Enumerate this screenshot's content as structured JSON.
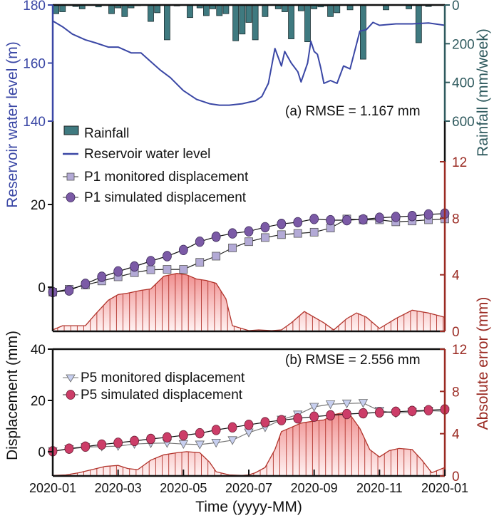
{
  "chart_data": [
    {
      "panel": "a",
      "type": "line",
      "annotation": "(a) RMSE = 1.167 mm",
      "colors": {
        "water": "#3a47a5",
        "rain": "#3f7a80",
        "rain_axis": "#2f5a5e",
        "p1_monitored": "#b3aad6",
        "p1_simulated": "#7b5aa6",
        "error_line": "#b2342c",
        "error_axis": "#9a2a22",
        "error_fill": "#f6b9b9"
      },
      "x_ticks": [
        "2020-01",
        "2020-03",
        "2020-05",
        "2020-07",
        "2020-09",
        "2020-11",
        "2020-01"
      ],
      "water_axis": {
        "label": "Reservoir water level (m)",
        "ticks": [
          140,
          160,
          180
        ],
        "range": [
          140,
          180
        ]
      },
      "rain_axis": {
        "label": "Rainfall (mm/week)",
        "ticks": [
          0,
          200,
          400,
          600
        ],
        "range": [
          0,
          600
        ],
        "inverted": true
      },
      "disp_axis": {
        "ticks": [
          0,
          20
        ],
        "range": [
          -6,
          20
        ]
      },
      "error_axis": {
        "ticks": [
          0,
          4,
          8,
          12
        ],
        "range": [
          0,
          12
        ]
      },
      "legend": [
        {
          "key": "rain",
          "label": "Rainfall"
        },
        {
          "key": "water",
          "label": "Reservoir water level"
        },
        {
          "key": "p1_monitored",
          "label": "P1 monitored displacement"
        },
        {
          "key": "p1_simulated",
          "label": "P1 simulated displacement"
        }
      ],
      "x_months": [
        0,
        0.5,
        1,
        1.5,
        2,
        2.5,
        3,
        3.5,
        4,
        4.5,
        5,
        5.5,
        6,
        6.5,
        7,
        7.5,
        8,
        8.5,
        9,
        9.5,
        10,
        10.5,
        11,
        11.5,
        12
      ],
      "rainfall": {
        "weeks_month": [
          0.1,
          0.3,
          0.7,
          0.9,
          1.4,
          1.8,
          2.0,
          2.2,
          2.4,
          2.6,
          3.0,
          3.2,
          3.5,
          3.8,
          4.2,
          4.5,
          4.7,
          4.9,
          5.1,
          5.3,
          5.6,
          5.8,
          6.0,
          6.2,
          6.5,
          6.9,
          7.1,
          7.3,
          7.6,
          7.8,
          8.0,
          8.2,
          8.4,
          8.5,
          8.7,
          9.1,
          9.5,
          10.2,
          10.9,
          11.2,
          11.5
        ],
        "values": [
          45,
          35,
          8,
          20,
          10,
          45,
          15,
          60,
          15,
          0,
          85,
          40,
          180,
          5,
          65,
          15,
          55,
          20,
          55,
          45,
          185,
          150,
          90,
          180,
          60,
          20,
          35,
          175,
          30,
          190,
          20,
          10,
          5,
          60,
          40,
          25,
          280,
          25,
          20,
          195,
          8
        ]
      },
      "water_level": {
        "months": [
          0,
          0.3,
          0.6,
          1.0,
          1.3,
          1.7,
          2.0,
          2.4,
          2.7,
          3.0,
          3.3,
          3.6,
          4.0,
          4.4,
          4.8,
          5.1,
          5.4,
          5.8,
          6.0,
          6.2,
          6.4,
          6.6,
          6.8,
          7.0,
          7.1,
          7.3,
          7.5,
          7.6,
          7.8,
          7.9,
          8.0,
          8.1,
          8.2,
          8.3,
          8.5,
          8.7,
          8.9,
          9.1,
          9.4,
          9.6,
          9.8,
          10.0,
          10.5,
          11.0,
          11.5,
          12.0
        ],
        "values": [
          174.5,
          172.5,
          170.0,
          168.0,
          167.0,
          165.5,
          165.5,
          163.5,
          163.5,
          160.5,
          157.5,
          155.0,
          150.5,
          147.5,
          146.0,
          145.5,
          145.5,
          146.0,
          146.5,
          147.0,
          148.5,
          153.0,
          165.0,
          159.0,
          164.0,
          160.0,
          157.0,
          153.5,
          160.0,
          167.5,
          164.0,
          163.0,
          158.5,
          153.0,
          154.0,
          153.0,
          159.0,
          158.0,
          171.0,
          171.5,
          174.0,
          173.0,
          173.5,
          173.5,
          173.8,
          173.0
        ]
      },
      "p1_monitored": [
        -1.2,
        -0.5,
        0.5,
        1.5,
        2.5,
        3.5,
        4.2,
        4.3,
        4.3,
        6.0,
        7.5,
        9.5,
        11.0,
        12.0,
        12.7,
        13.0,
        13.3,
        14.3,
        16.5,
        16.3,
        16.3,
        15.8,
        16.0,
        16.3,
        16.5
      ],
      "p1_simulated": [
        -1.2,
        -0.8,
        0.8,
        2.5,
        3.8,
        5.0,
        6.3,
        7.5,
        9.0,
        11.0,
        12.2,
        13.0,
        13.5,
        14.5,
        15.3,
        15.7,
        16.5,
        16.2,
        16.2,
        16.4,
        16.8,
        17.0,
        17.2,
        17.6,
        17.8
      ],
      "p1_error": {
        "months": [
          0,
          0.3,
          0.6,
          1.0,
          1.3,
          1.7,
          2.0,
          2.3,
          2.7,
          3.0,
          3.4,
          3.8,
          4.1,
          4.4,
          4.7,
          5.0,
          5.3,
          5.5,
          6.0,
          6.3,
          6.7,
          7.0,
          7.3,
          7.7,
          8.0,
          8.3,
          8.6,
          9.0,
          9.3,
          9.6,
          10.0,
          10.5,
          11.0,
          11.5,
          12.0
        ],
        "values": [
          0.1,
          0.4,
          0.4,
          0.4,
          1.2,
          2.2,
          2.6,
          2.7,
          2.9,
          3.0,
          3.9,
          4.1,
          4.0,
          3.7,
          3.6,
          3.4,
          2.3,
          0.4,
          0.05,
          0.1,
          0.05,
          0.1,
          0.6,
          1.4,
          1.0,
          0.6,
          0.1,
          0.9,
          1.3,
          1.0,
          0.2,
          0.9,
          1.5,
          1.3,
          1.0
        ]
      }
    },
    {
      "panel": "b",
      "type": "line",
      "annotation": "(b) RMSE = 2.556 mm",
      "colors": {
        "p5_monitored": "#c7cfef",
        "p5_simulated": "#cc3d68",
        "error_line": "#b2342c",
        "error_axis": "#9a2a22",
        "error_fill": "#f6b9b9"
      },
      "xlabel": "Time (yyyy-MM)",
      "ylabel": "Displacement (mm)",
      "error_label": "Absolute error (mm)",
      "x_ticks": [
        "2020-01",
        "2020-03",
        "2020-05",
        "2020-07",
        "2020-09",
        "2020-11",
        "2020-01"
      ],
      "disp_axis": {
        "ticks": [
          0,
          20,
          40
        ],
        "range": [
          -9,
          40
        ]
      },
      "error_axis": {
        "ticks": [
          0,
          4,
          8,
          12
        ],
        "range": [
          0,
          12
        ]
      },
      "legend": [
        {
          "key": "p5_monitored",
          "label": "P5 monitored displacement"
        },
        {
          "key": "p5_simulated",
          "label": "P5 simulated displacement"
        }
      ],
      "x_months": [
        0,
        0.5,
        1,
        1.5,
        2,
        2.5,
        3,
        3.5,
        4,
        4.5,
        5,
        5.5,
        6,
        6.5,
        7,
        7.5,
        8,
        8.5,
        9,
        9.5,
        10,
        10.5,
        11,
        11.5,
        12
      ],
      "p5_monitored": [
        0.2,
        1.0,
        1.8,
        2.0,
        2.2,
        3.0,
        3.3,
        3.4,
        3.0,
        2.8,
        3.5,
        4.5,
        7.5,
        9.5,
        12.5,
        14.5,
        17.5,
        18.5,
        18.8,
        19.0,
        16.0,
        15.0,
        15.5,
        16.0,
        15.8
      ],
      "p5_simulated": [
        0.2,
        1.2,
        2.0,
        2.8,
        3.5,
        4.2,
        5.0,
        5.6,
        6.4,
        7.2,
        8.5,
        9.5,
        10.5,
        11.5,
        12.3,
        13.0,
        13.7,
        14.2,
        14.7,
        15.0,
        15.3,
        15.6,
        15.9,
        16.2,
        16.5
      ],
      "p5_error": {
        "months": [
          0,
          0.4,
          0.8,
          1.2,
          1.6,
          2.0,
          2.3,
          2.6,
          3.0,
          3.4,
          3.8,
          4.1,
          4.5,
          4.8,
          5.0,
          5.4,
          5.8,
          6.0,
          6.2,
          6.5,
          6.8,
          7.0,
          7.3,
          7.6,
          8.0,
          8.3,
          8.6,
          8.9,
          9.1,
          9.4,
          9.7,
          10.0,
          10.3,
          10.6,
          11.0,
          11.3,
          11.6,
          12.0
        ],
        "values": [
          0.05,
          0.1,
          0.3,
          0.6,
          0.9,
          1.0,
          0.7,
          0.6,
          1.5,
          2.0,
          2.2,
          2.3,
          2.2,
          1.3,
          0.4,
          0.1,
          0.05,
          0.1,
          0.3,
          0.8,
          2.5,
          4.2,
          4.6,
          5.0,
          5.2,
          5.3,
          5.8,
          6.0,
          5.8,
          4.5,
          2.5,
          1.8,
          2.4,
          2.6,
          2.5,
          1.5,
          0.3,
          0.8
        ]
      }
    }
  ],
  "shared": {
    "left_top_label": "Reservoir water level (m)",
    "right_top_label": "Rainfall (mm/week)"
  }
}
